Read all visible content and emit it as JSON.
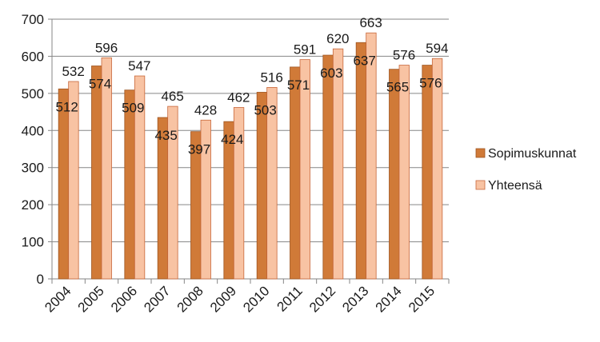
{
  "chart_data": {
    "type": "bar",
    "categories": [
      "2004",
      "2005",
      "2006",
      "2007",
      "2008",
      "2009",
      "2010",
      "2011",
      "2012",
      "2013",
      "2014",
      "2015"
    ],
    "series": [
      {
        "name": "Sopimuskunnat",
        "values": [
          512,
          574,
          509,
          435,
          397,
          424,
          503,
          571,
          603,
          637,
          565,
          576
        ],
        "color": "#D07A38",
        "border": "#9E5520"
      },
      {
        "name": "Yhteensä",
        "values": [
          532,
          596,
          547,
          465,
          428,
          462,
          516,
          591,
          620,
          663,
          576,
          594
        ],
        "color": "#F8C3A3",
        "border": "#C8673A"
      }
    ],
    "ylim": [
      0,
      700
    ],
    "yticks": [
      "0",
      "100",
      "200",
      "300",
      "400",
      "500",
      "600",
      "700"
    ],
    "grid": true,
    "legend": "right",
    "data_labels": true
  }
}
